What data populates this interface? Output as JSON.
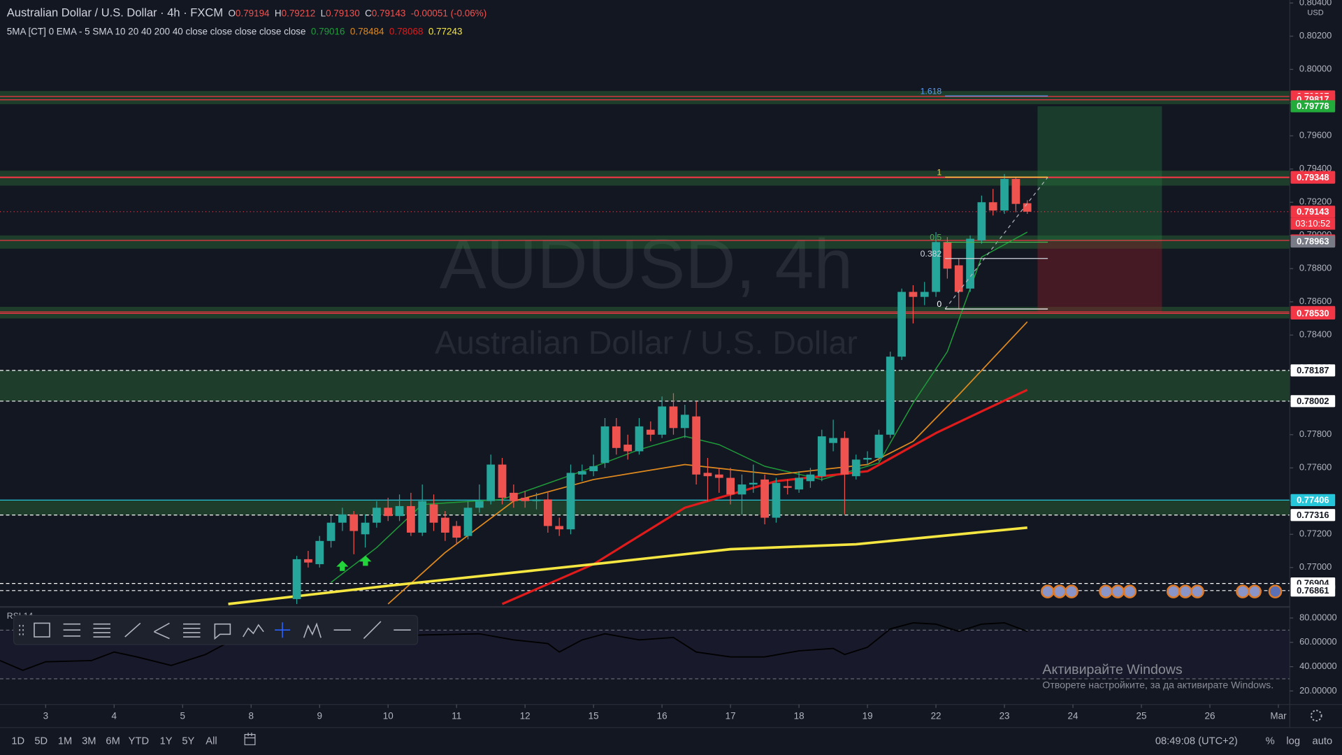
{
  "chart_data": [
    {
      "type": "candlestick",
      "title": "AUDUSD, 4h",
      "subtitle": "Australian Dollar / U.S. Dollar",
      "symbol": "Australian Dollar / U.S. Dollar · 4h · FXCM",
      "ohlc": [
        {
          "key": "O",
          "value": "0.79194"
        },
        {
          "key": "H",
          "value": "0.79212"
        },
        {
          "key": "L",
          "value": "0.79130"
        },
        {
          "key": "C",
          "value": "0.79143"
        }
      ],
      "change": "-0.00051 (-0.06%)",
      "indicator": "5MA [CT] 0 EMA - 5 SMA 10 20 40 200 40 close close close close close",
      "currency": "USD",
      "up_color": "#26a69a",
      "down_color": "#ef5350",
      "x": [
        22,
        23,
        24,
        25,
        26,
        27,
        28,
        29,
        30,
        31,
        32,
        33,
        34,
        35,
        36,
        37,
        38,
        39,
        40,
        41,
        42,
        43,
        44,
        45,
        46,
        47,
        48,
        49,
        50,
        51,
        52,
        53,
        54,
        55,
        56,
        57,
        58,
        59,
        60,
        61,
        62,
        63,
        64,
        65,
        66,
        67,
        68,
        69,
        70,
        71,
        72,
        73,
        74,
        75,
        76,
        77,
        78,
        79,
        80,
        81,
        82,
        83,
        84,
        85,
        86
      ],
      "open": [
        0.7681,
        0.7705,
        0.7702,
        0.7716,
        0.7727,
        0.7732,
        0.772,
        0.7727,
        0.7736,
        0.7731,
        0.7737,
        0.7721,
        0.7738,
        0.773,
        0.7725,
        0.7719,
        0.7736,
        0.774,
        0.7762,
        0.7745,
        0.7742,
        0.774,
        0.7741,
        0.7725,
        0.7723,
        0.7756,
        0.7758,
        0.7763,
        0.7785,
        0.7774,
        0.777,
        0.7783,
        0.778,
        0.7797,
        0.7784,
        0.7791,
        0.7757,
        0.7756,
        0.7754,
        0.7744,
        0.775,
        0.7753,
        0.773,
        0.7749,
        0.7747,
        0.7752,
        0.7755,
        0.7775,
        0.7778,
        0.7755,
        0.7765,
        0.7766,
        0.778,
        0.7827,
        0.7866,
        0.7863,
        0.7866,
        0.7896,
        0.7882,
        0.7868,
        0.7897,
        0.792,
        0.7915,
        0.7934,
        0.79194
      ],
      "high": [
        0.7707,
        0.771,
        0.7719,
        0.7731,
        0.7736,
        0.7734,
        0.7732,
        0.774,
        0.7742,
        0.7744,
        0.7745,
        0.775,
        0.7744,
        0.7734,
        0.7728,
        0.774,
        0.775,
        0.7768,
        0.7766,
        0.775,
        0.7746,
        0.7745,
        0.7746,
        0.773,
        0.7762,
        0.7762,
        0.7768,
        0.779,
        0.779,
        0.778,
        0.779,
        0.7788,
        0.7803,
        0.7805,
        0.7798,
        0.78,
        0.7766,
        0.776,
        0.776,
        0.7756,
        0.7762,
        0.7756,
        0.7754,
        0.7753,
        0.7758,
        0.776,
        0.7783,
        0.7789,
        0.7782,
        0.7768,
        0.777,
        0.7783,
        0.783,
        0.7868,
        0.787,
        0.7872,
        0.7902,
        0.7899,
        0.7886,
        0.79,
        0.7924,
        0.7928,
        0.7937,
        0.7935,
        0.79212
      ],
      "low": [
        0.7678,
        0.77,
        0.77,
        0.7712,
        0.7722,
        0.7708,
        0.7712,
        0.7724,
        0.7728,
        0.7728,
        0.7719,
        0.7719,
        0.7722,
        0.7716,
        0.7714,
        0.7717,
        0.7733,
        0.7738,
        0.7738,
        0.7736,
        0.7736,
        0.7735,
        0.7721,
        0.7719,
        0.772,
        0.7752,
        0.7755,
        0.776,
        0.7768,
        0.7765,
        0.7768,
        0.7776,
        0.7778,
        0.778,
        0.7778,
        0.775,
        0.774,
        0.7745,
        0.7738,
        0.7732,
        0.7745,
        0.7726,
        0.7727,
        0.7744,
        0.7745,
        0.7748,
        0.7752,
        0.777,
        0.7732,
        0.7753,
        0.7762,
        0.7764,
        0.7778,
        0.7825,
        0.7847,
        0.7858,
        0.7863,
        0.7874,
        0.7856,
        0.7866,
        0.7895,
        0.7912,
        0.7913,
        0.7914,
        0.7913
      ],
      "close": [
        0.7705,
        0.7703,
        0.7716,
        0.7727,
        0.7732,
        0.7722,
        0.7727,
        0.7736,
        0.7731,
        0.7737,
        0.7721,
        0.774,
        0.7727,
        0.7721,
        0.7718,
        0.7736,
        0.774,
        0.7762,
        0.7742,
        0.774,
        0.774,
        0.7741,
        0.7725,
        0.7723,
        0.7757,
        0.7758,
        0.7761,
        0.7785,
        0.7772,
        0.777,
        0.7785,
        0.778,
        0.7797,
        0.7784,
        0.7792,
        0.7756,
        0.7755,
        0.7754,
        0.7744,
        0.775,
        0.7751,
        0.773,
        0.7751,
        0.7748,
        0.7754,
        0.7756,
        0.7779,
        0.7778,
        0.7756,
        0.7765,
        0.7766,
        0.778,
        0.7827,
        0.7866,
        0.7863,
        0.7866,
        0.7896,
        0.788,
        0.7866,
        0.7898,
        0.792,
        0.7915,
        0.7934,
        0.7919,
        0.79143
      ],
      "series": [
        {
          "color": "#1f9d3a",
          "legend_value": "0.79016",
          "width": 1.2,
          "x": [
            25,
            29,
            33,
            40,
            47,
            52,
            56,
            59,
            63,
            68,
            73,
            76,
            79,
            82,
            86
          ],
          "values": [
            0.7691,
            0.7712,
            0.7738,
            0.7741,
            0.7758,
            0.7771,
            0.7779,
            0.7774,
            0.7761,
            0.7753,
            0.7763,
            0.7799,
            0.783,
            0.7887,
            0.7902
          ]
        },
        {
          "color": "#e08a1e",
          "legend_value": "0.78484",
          "width": 1.4,
          "x": [
            30,
            35,
            41,
            48,
            56,
            64,
            72,
            76,
            80,
            86
          ],
          "values": [
            0.7678,
            0.7709,
            0.774,
            0.7753,
            0.7762,
            0.7756,
            0.7762,
            0.7776,
            0.7804,
            0.7848
          ]
        },
        {
          "color": "#e01b1b",
          "legend_value": "0.78068",
          "width": 2.6,
          "x": [
            40,
            48,
            56,
            64,
            72,
            78,
            82,
            86
          ],
          "values": [
            0.7678,
            0.7702,
            0.7736,
            0.7752,
            0.7758,
            0.7781,
            0.7794,
            0.7807
          ]
        },
        {
          "color": "#f5e642",
          "legend_value": "0.77243",
          "width": 3,
          "x": [
            16,
            30,
            48,
            60,
            71,
            86
          ],
          "values": [
            0.7678,
            0.7689,
            0.7702,
            0.7711,
            0.7714,
            0.7724
          ]
        }
      ],
      "xlim": [
        -4,
        109
      ],
      "xticks": [
        {
          "value": 0,
          "label": "3"
        },
        {
          "value": 6,
          "label": "4"
        },
        {
          "value": 12,
          "label": "5"
        },
        {
          "value": 18,
          "label": "8"
        },
        {
          "value": 24,
          "label": "9"
        },
        {
          "value": 30,
          "label": "10"
        },
        {
          "value": 36,
          "label": "11"
        },
        {
          "value": 42,
          "label": "12"
        },
        {
          "value": 48,
          "label": "15"
        },
        {
          "value": 54,
          "label": "16"
        },
        {
          "value": 60,
          "label": "17"
        },
        {
          "value": 66,
          "label": "18"
        },
        {
          "value": 72,
          "label": "19"
        },
        {
          "value": 78,
          "label": "22"
        },
        {
          "value": 84,
          "label": "23"
        },
        {
          "value": 90,
          "label": "24"
        },
        {
          "value": 96,
          "label": "25"
        },
        {
          "value": 102,
          "label": "26"
        },
        {
          "value": 108,
          "label": "Mar"
        }
      ],
      "ylim": [
        0.76773,
        0.80418
      ],
      "yticks": [
        {
          "value": 0.804,
          "label": "0.80400"
        },
        {
          "value": 0.802,
          "label": "0.80200"
        },
        {
          "value": 0.8,
          "label": "0.80000"
        },
        {
          "value": 0.798,
          "label": "0.79800"
        },
        {
          "value": 0.796,
          "label": "0.79600"
        },
        {
          "value": 0.794,
          "label": "0.79400"
        },
        {
          "value": 0.792,
          "label": "0.79200"
        },
        {
          "value": 0.79,
          "label": "0.79000"
        },
        {
          "value": 0.788,
          "label": "0.78800"
        },
        {
          "value": 0.786,
          "label": "0.78600"
        },
        {
          "value": 0.784,
          "label": "0.78400"
        },
        {
          "value": 0.782,
          "label": "0.78200"
        },
        {
          "value": 0.78,
          "label": "0.78000"
        },
        {
          "value": 0.778,
          "label": "0.77800"
        },
        {
          "value": 0.776,
          "label": "0.77600"
        },
        {
          "value": 0.774,
          "label": "0.77400"
        },
        {
          "value": 0.772,
          "label": "0.77200"
        },
        {
          "value": 0.77,
          "label": "0.77000"
        }
      ],
      "zones": [
        {
          "top": 0.7987,
          "bottom": 0.7979
        },
        {
          "top": 0.7939,
          "bottom": 0.793
        },
        {
          "top": 0.79,
          "bottom": 0.7892
        },
        {
          "top": 0.7857,
          "bottom": 0.785
        },
        {
          "top": 0.78187,
          "bottom": 0.78002
        },
        {
          "top": 0.77406,
          "bottom": 0.77316
        }
      ],
      "price_labels": [
        {
          "value": 0.79837,
          "label": "0.79837",
          "color": "#f23645",
          "line": "solid"
        },
        {
          "value": 0.79817,
          "label": "0.79817",
          "color": "#f23645",
          "line": "solid"
        },
        {
          "value": 0.79778,
          "label": "0.79778",
          "color": "#22ab3a",
          "line": "none"
        },
        {
          "value": 0.79352,
          "label": "0.79352",
          "color": "#f23645",
          "line": "solid"
        },
        {
          "value": 0.79348,
          "label": "0.79348",
          "color": "#f23645",
          "line": "solid"
        },
        {
          "value": 0.79143,
          "label": "0.79143",
          "color": "#f23645",
          "line": "dotted",
          "countdown": "03:10:52"
        },
        {
          "value": 0.7897,
          "label": "0.78970",
          "color": "#f23645",
          "line": "solid"
        },
        {
          "value": 0.78963,
          "label": "0.78963",
          "color": "#787b86",
          "line": "none"
        },
        {
          "value": 0.78539,
          "label": "0.78539",
          "color": "#f23645",
          "line": "solid"
        },
        {
          "value": 0.7853,
          "label": "0.78530",
          "color": "#f23645",
          "line": "solid"
        },
        {
          "value": 0.78187,
          "label": "0.78187",
          "color": "#ffffff",
          "line": "dashed"
        },
        {
          "value": 0.78002,
          "label": "0.78002",
          "color": "#ffffff",
          "line": "dashed"
        },
        {
          "value": 0.77406,
          "label": "0.77406",
          "color": "#26c6da",
          "line": "solid"
        },
        {
          "value": 0.77316,
          "label": "0.77316",
          "color": "#ffffff",
          "line": "dashed"
        },
        {
          "value": 0.76904,
          "label": "0.76904",
          "color": "#ffffff",
          "line": "dashed"
        },
        {
          "value": 0.76861,
          "label": "0.76861",
          "color": "#ffffff",
          "line": "dashed"
        }
      ],
      "fib": {
        "x": [
          78.8,
          87.8
        ],
        "levels": [
          {
            "level": 0,
            "price": 0.78557,
            "color": "#ffffff"
          },
          {
            "level": 0.382,
            "price": 0.78861,
            "color": "#d1d4dc"
          },
          {
            "level": 0.5,
            "price": 0.78959,
            "color": "#4caf50"
          },
          {
            "level": 1,
            "price": 0.79351,
            "color": "#f5d742"
          },
          {
            "level": 1.618,
            "price": 0.7984,
            "color": "#5b9cf6"
          }
        ]
      },
      "position": {
        "x": [
          86.9,
          97.8
        ],
        "target": 0.79778,
        "entry": 0.78963,
        "stop": 0.78539
      }
    },
    {
      "type": "line",
      "title": "RSI 14",
      "color": "#000000",
      "x": [
        -4,
        -2,
        0,
        4,
        6,
        8,
        11,
        14,
        16,
        33,
        38,
        41,
        44,
        45,
        47,
        49,
        52,
        55,
        57,
        60,
        63,
        66,
        69,
        70,
        72,
        74,
        76,
        78,
        80,
        82,
        84,
        86
      ],
      "values": [
        45,
        37,
        44,
        45,
        52,
        48,
        41,
        50,
        60,
        66,
        67,
        62,
        59,
        52,
        62,
        67,
        62,
        64,
        52,
        48,
        48,
        53,
        55,
        50,
        56,
        71,
        76,
        75,
        69,
        75,
        76,
        69
      ],
      "xlim": [
        -4,
        109
      ],
      "ylim": [
        11,
        87
      ],
      "levels": [
        70,
        30
      ],
      "yticks": [
        {
          "value": 80,
          "label": "80.00000"
        },
        {
          "value": 60,
          "label": "60.00000"
        },
        {
          "value": 40,
          "label": "40.00000"
        },
        {
          "value": 20,
          "label": "20.00000"
        }
      ]
    }
  ],
  "bottom_bar": {
    "periods": [
      "1D",
      "5D",
      "1M",
      "3M",
      "6M",
      "YTD",
      "1Y",
      "5Y",
      "All"
    ],
    "clock": "08:49:08 (UTC+2)",
    "buttons": [
      "%",
      "log",
      "auto"
    ]
  },
  "windows_activation": {
    "title": "Активирайте Windows",
    "subtitle": "Отворете настройките, за да активирате Windows."
  }
}
